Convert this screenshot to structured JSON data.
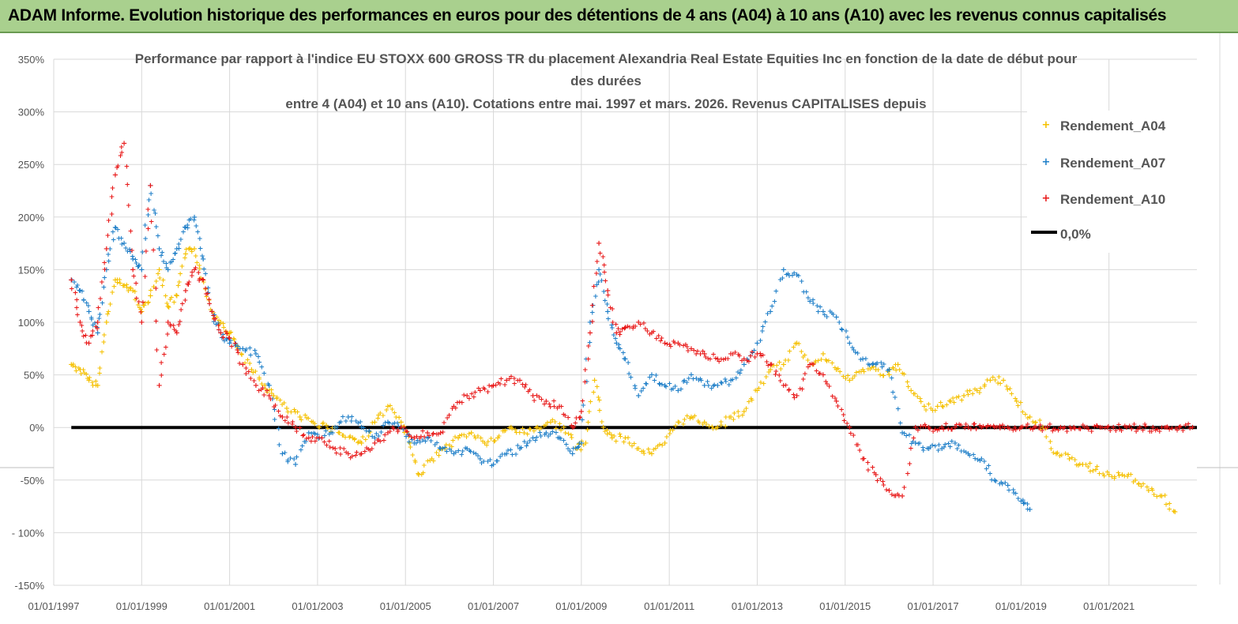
{
  "banner_title": "ADAM Informe. Evolution historique des performances en euros pour des détentions de 4 ans (A04) à 10 ans (A10) avec les revenus connus capitalisés",
  "chart_data": {
    "type": "scatter",
    "title_lines": [
      "Performance par rapport à l'indice EU STOXX 600 GROSS TR  du placement Alexandria Real Estate Equities Inc en fonction de la date de début pour",
      "des durées",
      "entre 4 (A04) et 10 ans (A10). Cotations entre mai. 1997 et mars. 2026. Revenus CAPITALISES depuis"
    ],
    "xlabel": "",
    "ylabel": "",
    "x_range_years": [
      1997.0,
      2023.0
    ],
    "ylim": [
      -150,
      350
    ],
    "y_ticks": [
      350,
      300,
      250,
      200,
      150,
      100,
      50,
      0,
      -50,
      -100,
      -150
    ],
    "y_tick_labels": [
      "350%",
      "300%",
      "250%",
      "200%",
      "150%",
      "100%",
      "50%",
      "0%",
      "-50%",
      "- 100%",
      "-150%"
    ],
    "x_ticks": [
      1997,
      1999,
      2001,
      2003,
      2005,
      2007,
      2009,
      2011,
      2013,
      2015,
      2017,
      2019,
      2021
    ],
    "x_tick_labels": [
      "01/01/1997",
      "01/01/1999",
      "01/01/2001",
      "01/01/2003",
      "01/01/2005",
      "01/01/2007",
      "01/01/2009",
      "01/01/2011",
      "01/01/2013",
      "01/01/2015",
      "01/01/2017",
      "01/01/2019",
      "01/01/2021"
    ],
    "legend_position": "top-right",
    "series": [
      {
        "name": "Rendement_A04",
        "color": "#f5c000",
        "marker": "+",
        "x": [
          1997.4,
          1997.6,
          1997.8,
          1998.0,
          1998.2,
          1998.4,
          1998.6,
          1998.8,
          1999.0,
          1999.2,
          1999.4,
          1999.6,
          1999.8,
          2000.0,
          2000.2,
          2000.4,
          2000.6,
          2000.8,
          2001.0,
          2001.2,
          2001.5,
          2001.8,
          2002.0,
          2002.3,
          2002.6,
          2002.9,
          2003.2,
          2003.5,
          2003.8,
          2004.0,
          2004.3,
          2004.6,
          2004.9,
          2005.1,
          2005.3,
          2005.6,
          2005.9,
          2006.2,
          2006.5,
          2006.8,
          2007.1,
          2007.4,
          2007.7,
          2008.0,
          2008.3,
          2008.6,
          2008.9,
          2009.1,
          2009.3,
          2009.5,
          2009.7,
          2010.0,
          2010.3,
          2010.6,
          2010.9,
          2011.2,
          2011.5,
          2011.8,
          2012.1,
          2012.4,
          2012.7,
          2013.0,
          2013.3,
          2013.6,
          2013.9,
          2014.2,
          2014.5,
          2014.8,
          2015.1,
          2015.4,
          2015.7,
          2016.0,
          2016.2,
          2016.5,
          2016.8,
          2017.1,
          2017.4,
          2017.7,
          2018.0,
          2018.3,
          2018.6,
          2018.9,
          2019.2,
          2019.5,
          2019.8,
          2020.1,
          2020.4,
          2020.7,
          2021.0,
          2021.3,
          2021.6,
          2021.9,
          2022.2,
          2022.5
        ],
        "y": [
          60,
          55,
          45,
          40,
          100,
          140,
          135,
          130,
          110,
          125,
          150,
          115,
          125,
          165,
          170,
          140,
          110,
          100,
          90,
          75,
          55,
          40,
          30,
          18,
          10,
          5,
          2,
          -5,
          -10,
          -15,
          5,
          20,
          5,
          -15,
          -45,
          -30,
          -20,
          -10,
          -5,
          -15,
          -10,
          0,
          -5,
          0,
          5,
          0,
          -20,
          -15,
          45,
          0,
          -10,
          -10,
          -20,
          -25,
          -15,
          5,
          10,
          5,
          0,
          10,
          15,
          35,
          55,
          60,
          80,
          60,
          70,
          55,
          45,
          55,
          55,
          50,
          60,
          35,
          20,
          20,
          25,
          30,
          35,
          45,
          45,
          25,
          10,
          0,
          -25,
          -30,
          -35,
          -40,
          -45,
          -45,
          -50,
          -60,
          -65,
          -80
        ]
      },
      {
        "name": "Rendement_A07",
        "color": "#1f7fc8",
        "marker": "+",
        "x": [
          1997.4,
          1997.6,
          1997.8,
          1998.0,
          1998.2,
          1998.4,
          1998.6,
          1998.8,
          1999.0,
          1999.2,
          1999.4,
          1999.6,
          1999.8,
          2000.0,
          2000.2,
          2000.4,
          2000.6,
          2000.8,
          2001.0,
          2001.3,
          2001.6,
          2001.9,
          2002.2,
          2002.5,
          2002.8,
          2003.1,
          2003.4,
          2003.7,
          2004.0,
          2004.3,
          2004.6,
          2004.9,
          2005.2,
          2005.5,
          2005.8,
          2006.1,
          2006.4,
          2006.7,
          2007.0,
          2007.3,
          2007.6,
          2007.9,
          2008.2,
          2008.5,
          2008.8,
          2009.0,
          2009.2,
          2009.4,
          2009.6,
          2009.8,
          2010.0,
          2010.3,
          2010.6,
          2010.9,
          2011.2,
          2011.5,
          2011.8,
          2012.1,
          2012.4,
          2012.7,
          2013.0,
          2013.3,
          2013.6,
          2013.9,
          2014.2,
          2014.5,
          2014.8,
          2015.1,
          2015.4,
          2015.7,
          2016.0,
          2016.3,
          2016.6,
          2016.9,
          2017.2,
          2017.5,
          2017.8,
          2018.1,
          2018.4,
          2018.7,
          2019.0,
          2019.2
        ],
        "y": [
          140,
          130,
          110,
          90,
          150,
          190,
          175,
          160,
          150,
          230,
          170,
          150,
          170,
          190,
          200,
          160,
          110,
          90,
          80,
          75,
          70,
          40,
          -25,
          -35,
          -5,
          -10,
          0,
          10,
          0,
          -10,
          5,
          0,
          -15,
          -10,
          -20,
          -25,
          -20,
          -30,
          -35,
          -25,
          -20,
          -10,
          -5,
          -10,
          -25,
          -15,
          100,
          150,
          110,
          80,
          65,
          30,
          50,
          40,
          35,
          50,
          40,
          40,
          45,
          60,
          80,
          110,
          150,
          145,
          120,
          110,
          105,
          80,
          65,
          60,
          55,
          -5,
          -15,
          -20,
          -20,
          -15,
          -25,
          -30,
          -50,
          -55,
          -70,
          -78
        ]
      },
      {
        "name": "Rendement_A10",
        "color": "#e81818",
        "marker": "+",
        "x": [
          1997.4,
          1997.6,
          1997.8,
          1998.0,
          1998.2,
          1998.4,
          1998.6,
          1998.8,
          1999.0,
          1999.2,
          1999.4,
          1999.6,
          1999.8,
          2000.0,
          2000.2,
          2000.4,
          2000.6,
          2000.8,
          2001.0,
          2001.3,
          2001.6,
          2001.9,
          2002.2,
          2002.5,
          2002.8,
          2003.1,
          2003.4,
          2003.7,
          2004.0,
          2004.3,
          2004.6,
          2004.9,
          2005.2,
          2005.5,
          2005.8,
          2006.1,
          2006.4,
          2006.7,
          2007.0,
          2007.3,
          2007.6,
          2007.9,
          2008.2,
          2008.5,
          2008.8,
          2009.0,
          2009.2,
          2009.4,
          2009.6,
          2009.8,
          2010.0,
          2010.3,
          2010.6,
          2010.9,
          2011.2,
          2011.5,
          2011.8,
          2012.1,
          2012.4,
          2012.7,
          2013.0,
          2013.3,
          2013.6,
          2013.9,
          2014.2,
          2014.5,
          2014.8,
          2015.1,
          2015.4,
          2015.7,
          2016.0,
          2016.3,
          2016.6,
          2016.9,
          2017.2,
          2017.5,
          2017.8,
          2018.1,
          2018.4,
          2018.7,
          2019.0,
          2019.3,
          2019.6,
          2019.9,
          2020.2,
          2020.5,
          2020.8,
          2021.1,
          2021.4,
          2021.7,
          2022.0,
          2022.3,
          2022.6,
          2022.9
        ],
        "y": [
          140,
          100,
          80,
          100,
          170,
          240,
          270,
          150,
          100,
          230,
          40,
          100,
          90,
          130,
          150,
          140,
          110,
          90,
          85,
          60,
          40,
          30,
          10,
          0,
          -10,
          -10,
          -20,
          -25,
          -25,
          -15,
          -5,
          0,
          -10,
          -5,
          -5,
          20,
          30,
          35,
          40,
          45,
          45,
          30,
          25,
          20,
          0,
          15,
          90,
          175,
          130,
          90,
          95,
          100,
          90,
          80,
          80,
          75,
          70,
          65,
          70,
          65,
          70,
          60,
          40,
          30,
          60,
          50,
          25,
          0,
          -30,
          -45,
          -60,
          -65,
          0,
          0,
          0,
          0,
          0,
          0,
          0,
          0,
          0,
          0,
          0,
          0,
          0,
          0,
          0,
          0,
          0,
          0,
          0,
          0,
          0,
          0
        ]
      },
      {
        "name": "0,0%",
        "color": "#000000",
        "marker": "line",
        "x": [
          1997.4,
          2023.0
        ],
        "y": [
          0,
          0
        ]
      }
    ]
  }
}
